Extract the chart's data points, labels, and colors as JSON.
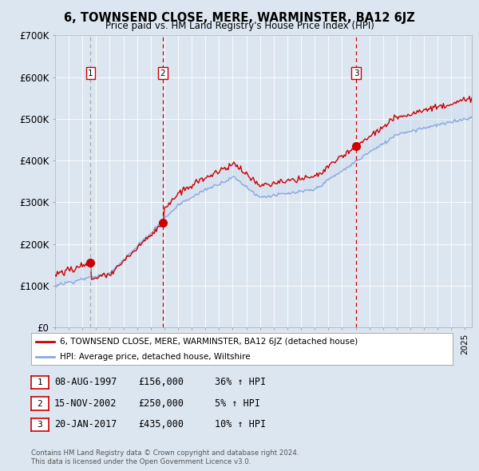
{
  "title": "6, TOWNSEND CLOSE, MERE, WARMINSTER, BA12 6JZ",
  "subtitle": "Price paid vs. HM Land Registry's House Price Index (HPI)",
  "legend_line1": "6, TOWNSEND CLOSE, MERE, WARMINSTER, BA12 6JZ (detached house)",
  "legend_line2": "HPI: Average price, detached house, Wiltshire",
  "sale_dates": [
    1997.6,
    2002.88,
    2017.05
  ],
  "sale_prices": [
    156000,
    250000,
    435000
  ],
  "sale_labels": [
    "1",
    "2",
    "3"
  ],
  "sale_vline_styles": [
    "dashed_grey",
    "dashed_red",
    "dashed_red"
  ],
  "sale_info": [
    {
      "label": "1",
      "date": "08-AUG-1997",
      "price": "£156,000",
      "hpi": "36% ↑ HPI"
    },
    {
      "label": "2",
      "date": "15-NOV-2002",
      "price": "£250,000",
      "hpi": "5% ↑ HPI"
    },
    {
      "label": "3",
      "date": "20-JAN-2017",
      "price": "£435,000",
      "hpi": "10% ↑ HPI"
    }
  ],
  "footer1": "Contains HM Land Registry data © Crown copyright and database right 2024.",
  "footer2": "This data is licensed under the Open Government Licence v3.0.",
  "xmin": 1995.0,
  "xmax": 2025.5,
  "ymin": 0,
  "ymax": 700000,
  "line_color_red": "#cc0000",
  "line_color_blue": "#88aadd",
  "fill_color": "#c8d8ee",
  "bg_color": "#dce6f1",
  "plot_bg": "#dce6f1",
  "grid_color": "#ffffff"
}
